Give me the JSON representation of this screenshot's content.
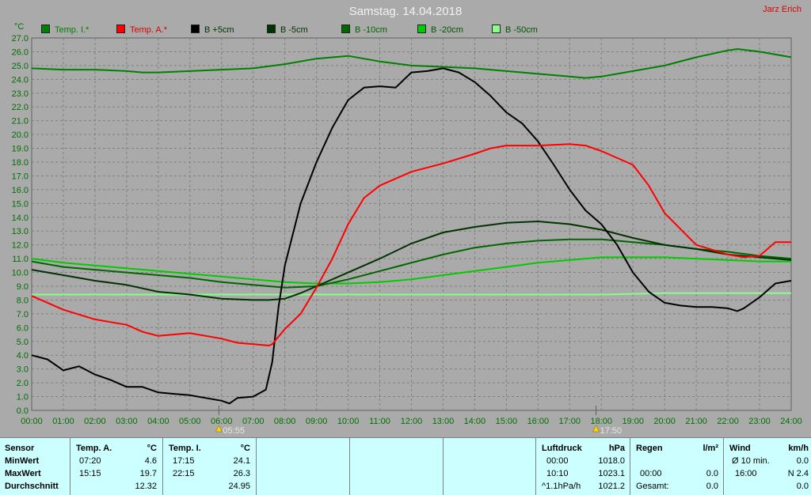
{
  "header": {
    "title": "Samstag. 14.04.2018",
    "author": "Jarz Erich"
  },
  "colors": {
    "background": "#aaaaaa",
    "grid": "#808080",
    "axis_text": "#007000",
    "panel": "#ccffff"
  },
  "chart_data": {
    "type": "line",
    "ylabel": "°C",
    "ylim": [
      0,
      27
    ],
    "y_ticks": [
      "0.0",
      "1.0",
      "2.0",
      "3.0",
      "4.0",
      "5.0",
      "6.0",
      "7.0",
      "8.0",
      "9.0",
      "10.0",
      "11.0",
      "12.0",
      "13.0",
      "14.0",
      "15.0",
      "16.0",
      "17.0",
      "18.0",
      "19.0",
      "20.0",
      "21.0",
      "22.0",
      "23.0",
      "24.0",
      "25.0",
      "26.0",
      "27.0"
    ],
    "xlim": [
      0,
      24
    ],
    "x_ticks": [
      "00:00",
      "01:00",
      "02:00",
      "03:00",
      "04:00",
      "05:00",
      "06:00",
      "07:00",
      "08:00",
      "09:00",
      "10:00",
      "11:00",
      "12:00",
      "13:00",
      "14:00",
      "15:00",
      "16:00",
      "17:00",
      "18:00",
      "19:00",
      "20:00",
      "21:00",
      "22:00",
      "23:00",
      "24:00"
    ],
    "grid": true,
    "sunrise": {
      "time": 5.9167,
      "label": "05:55"
    },
    "sunset": {
      "time": 17.8333,
      "label": "17:50"
    },
    "series": [
      {
        "name": "Temp. I.*",
        "color": "#008000",
        "x": [
          0,
          1,
          2,
          3,
          3.5,
          4,
          5,
          6,
          7,
          8,
          9,
          10,
          11,
          12,
          13,
          14,
          15,
          16,
          17,
          17.5,
          18,
          19,
          20,
          21,
          22,
          22.3,
          23,
          24
        ],
        "y": [
          24.8,
          24.7,
          24.7,
          24.6,
          24.5,
          24.5,
          24.6,
          24.7,
          24.8,
          25.1,
          25.5,
          25.7,
          25.3,
          25.0,
          24.9,
          24.8,
          24.6,
          24.4,
          24.2,
          24.1,
          24.2,
          24.6,
          25.0,
          25.6,
          26.1,
          26.2,
          26.0,
          25.6
        ]
      },
      {
        "name": "Temp. A.*",
        "color": "#ff0000",
        "x": [
          0,
          0.5,
          1,
          2,
          3,
          3.5,
          4,
          5,
          6,
          6.5,
          7,
          7.5,
          7.6,
          8,
          8.5,
          9,
          9.5,
          10,
          10.5,
          11,
          12,
          13,
          14,
          14.5,
          15,
          16,
          17,
          17.5,
          18,
          19,
          19.5,
          20,
          21,
          22,
          22.5,
          23,
          23.5,
          24
        ],
        "y": [
          8.3,
          7.8,
          7.3,
          6.6,
          6.2,
          5.7,
          5.4,
          5.6,
          5.2,
          4.9,
          4.8,
          4.7,
          4.8,
          5.9,
          7.0,
          8.9,
          11.0,
          13.5,
          15.4,
          16.3,
          17.3,
          17.9,
          18.6,
          19.0,
          19.2,
          19.2,
          19.3,
          19.2,
          18.8,
          17.8,
          16.3,
          14.3,
          12.0,
          11.3,
          11.1,
          11.2,
          12.2,
          12.2
        ]
      },
      {
        "name": "B +5cm",
        "color": "#000000",
        "x": [
          0,
          0.5,
          1,
          1.5,
          2,
          2.5,
          3,
          3.5,
          4,
          4.5,
          5,
          5.5,
          6,
          6.25,
          6.5,
          7,
          7.4,
          7.6,
          7.8,
          8,
          8.5,
          9,
          9.5,
          10,
          10.5,
          11,
          11.5,
          12,
          12.5,
          13,
          13.5,
          14,
          14.5,
          15,
          15.5,
          16,
          16.5,
          17,
          17.5,
          18,
          18.5,
          19,
          19.5,
          20,
          20.5,
          21,
          21.5,
          22,
          22.3,
          22.5,
          23,
          23.5,
          24
        ],
        "y": [
          4.0,
          3.7,
          2.9,
          3.2,
          2.6,
          2.2,
          1.7,
          1.7,
          1.3,
          1.2,
          1.1,
          0.9,
          0.7,
          0.5,
          0.9,
          1.0,
          1.5,
          3.5,
          7.5,
          10.5,
          15.0,
          18.0,
          20.5,
          22.5,
          23.4,
          23.5,
          23.4,
          24.5,
          24.6,
          24.8,
          24.5,
          23.8,
          22.8,
          21.6,
          20.8,
          19.5,
          17.8,
          16.0,
          14.5,
          13.5,
          12.0,
          10.0,
          8.6,
          7.8,
          7.6,
          7.5,
          7.5,
          7.4,
          7.2,
          7.4,
          8.2,
          9.2,
          9.4
        ]
      },
      {
        "name": "B -5cm",
        "color": "#003300",
        "x": [
          0,
          1,
          2,
          3,
          4,
          5,
          6,
          7,
          7.5,
          8,
          8.5,
          9,
          10,
          11,
          12,
          13,
          14,
          15,
          16,
          17,
          18,
          19,
          20,
          21,
          22,
          23,
          24
        ],
        "y": [
          10.2,
          9.8,
          9.4,
          9.1,
          8.6,
          8.4,
          8.1,
          8.0,
          8.0,
          8.1,
          8.5,
          9.0,
          10.0,
          11.0,
          12.1,
          12.9,
          13.3,
          13.6,
          13.7,
          13.5,
          13.1,
          12.5,
          12.0,
          11.7,
          11.3,
          11.1,
          10.9
        ]
      },
      {
        "name": "B -10cm",
        "color": "#006600",
        "x": [
          0,
          1,
          2,
          3,
          4,
          5,
          6,
          7,
          8,
          9,
          10,
          11,
          12,
          13,
          14,
          15,
          16,
          17,
          18,
          19,
          20,
          21,
          22,
          23,
          24
        ],
        "y": [
          10.8,
          10.4,
          10.2,
          10.0,
          9.8,
          9.6,
          9.3,
          9.1,
          8.9,
          9.0,
          9.5,
          10.1,
          10.7,
          11.3,
          11.8,
          12.1,
          12.3,
          12.4,
          12.4,
          12.2,
          12.0,
          11.7,
          11.5,
          11.2,
          11.0
        ]
      },
      {
        "name": "B -20cm",
        "color": "#00cc00",
        "x": [
          0,
          1,
          2,
          3,
          4,
          5,
          6,
          7,
          8,
          9,
          10,
          11,
          12,
          13,
          14,
          15,
          16,
          17,
          18,
          19,
          20,
          21,
          22,
          23,
          24
        ],
        "y": [
          11.0,
          10.7,
          10.5,
          10.3,
          10.1,
          9.9,
          9.7,
          9.5,
          9.3,
          9.2,
          9.2,
          9.3,
          9.5,
          9.8,
          10.1,
          10.4,
          10.7,
          10.9,
          11.1,
          11.1,
          11.1,
          11.0,
          10.9,
          10.8,
          10.8
        ]
      },
      {
        "name": "B -50cm",
        "color": "#88ff88",
        "x": [
          0,
          2,
          4,
          6,
          8,
          10,
          12,
          14,
          16,
          18,
          20,
          22,
          24
        ],
        "y": [
          8.4,
          8.4,
          8.4,
          8.4,
          8.4,
          8.4,
          8.4,
          8.4,
          8.4,
          8.4,
          8.5,
          8.5,
          8.5
        ]
      }
    ]
  },
  "stats": {
    "sensor": {
      "header": "Sensor",
      "min": "MinWert",
      "max": "MaxWert",
      "avg": "Durchschnitt"
    },
    "temp_a": {
      "header": "Temp. A.",
      "unit": "°C",
      "min_time": "07:20",
      "min_val": "4.6",
      "max_time": "15:15",
      "max_val": "19.7",
      "avg": "12.32"
    },
    "temp_i": {
      "header": "Temp. I.",
      "unit": "°C",
      "min_time": "17:15",
      "min_val": "24.1",
      "max_time": "22:15",
      "max_val": "26.3",
      "avg": "24.95"
    },
    "pressure": {
      "header": "Luftdruck",
      "unit": "hPa",
      "min_time": "00:00",
      "min_val": "1018.0",
      "max_time": "10:10",
      "max_val": "1023.1",
      "trend": "^1.1hPa/h",
      "avg": "1021.2"
    },
    "rain": {
      "header": "Regen",
      "unit": "l/m²",
      "max_time": "00:00",
      "max_val": "0.0",
      "total_label": "Gesamt:",
      "total": "0.0"
    },
    "wind": {
      "header": "Wind",
      "unit": "km/h",
      "avg_label": "Ø 10 min.",
      "avg_val": "0.0",
      "max_time": "16:00",
      "max_val": "N 2.4",
      "row3_val": "0.0"
    }
  }
}
